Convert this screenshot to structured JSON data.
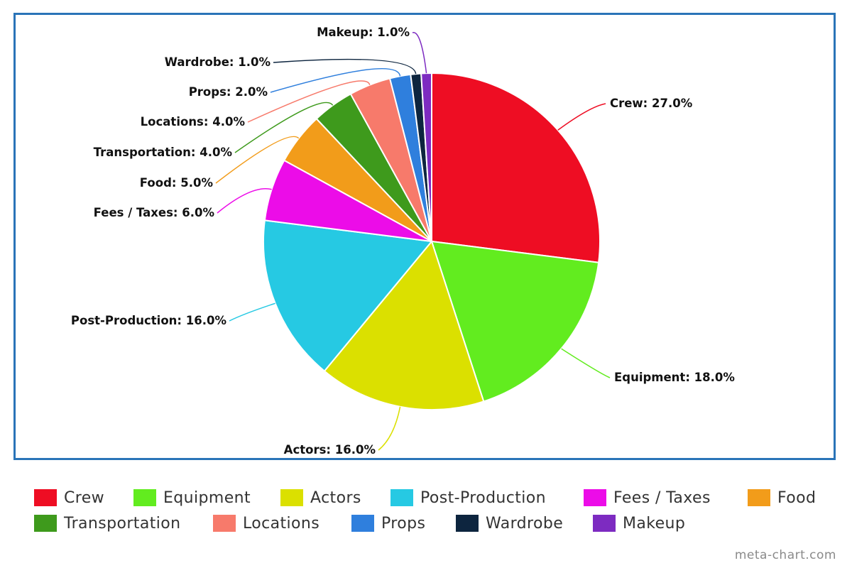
{
  "chart_data": {
    "type": "pie",
    "title": "",
    "slices": [
      {
        "name": "Crew",
        "value": 27.0,
        "label": "Crew: 27.0%",
        "color": "#ee0d23"
      },
      {
        "name": "Equipment",
        "value": 18.0,
        "label": "Equipment: 18.0%",
        "color": "#62ec1f"
      },
      {
        "name": "Actors",
        "value": 16.0,
        "label": "Actors: 16.0%",
        "color": "#dbe000"
      },
      {
        "name": "Post-Production",
        "value": 16.0,
        "label": "Post-Production: 16.0%",
        "color": "#26c9e3"
      },
      {
        "name": "Fees / Taxes",
        "value": 6.0,
        "label": "Fees / Taxes: 6.0%",
        "color": "#ec0ce8"
      },
      {
        "name": "Food",
        "value": 5.0,
        "label": "Food: 5.0%",
        "color": "#f29c1a"
      },
      {
        "name": "Transportation",
        "value": 4.0,
        "label": "Transportation: 4.0%",
        "color": "#3e9a1c"
      },
      {
        "name": "Locations",
        "value": 4.0,
        "label": "Locations: 4.0%",
        "color": "#f77a6b"
      },
      {
        "name": "Props",
        "value": 2.0,
        "label": "Props: 2.0%",
        "color": "#2f7fdd"
      },
      {
        "name": "Wardrobe",
        "value": 1.0,
        "label": "Wardrobe: 1.0%",
        "color": "#0d253f"
      },
      {
        "name": "Makeup",
        "value": 1.0,
        "label": "Makeup: 1.0%",
        "color": "#7d2bc1"
      }
    ],
    "legend": {
      "placement": "bottom",
      "rows": [
        [
          "Crew",
          "Equipment",
          "Actors",
          "Post-Production",
          "Fees / Taxes",
          "Food"
        ],
        [
          "Transportation",
          "Locations",
          "Props",
          "Wardrobe",
          "Makeup"
        ]
      ]
    }
  },
  "frame_border_color": "#2a74b8",
  "watermark": "meta-chart.com"
}
